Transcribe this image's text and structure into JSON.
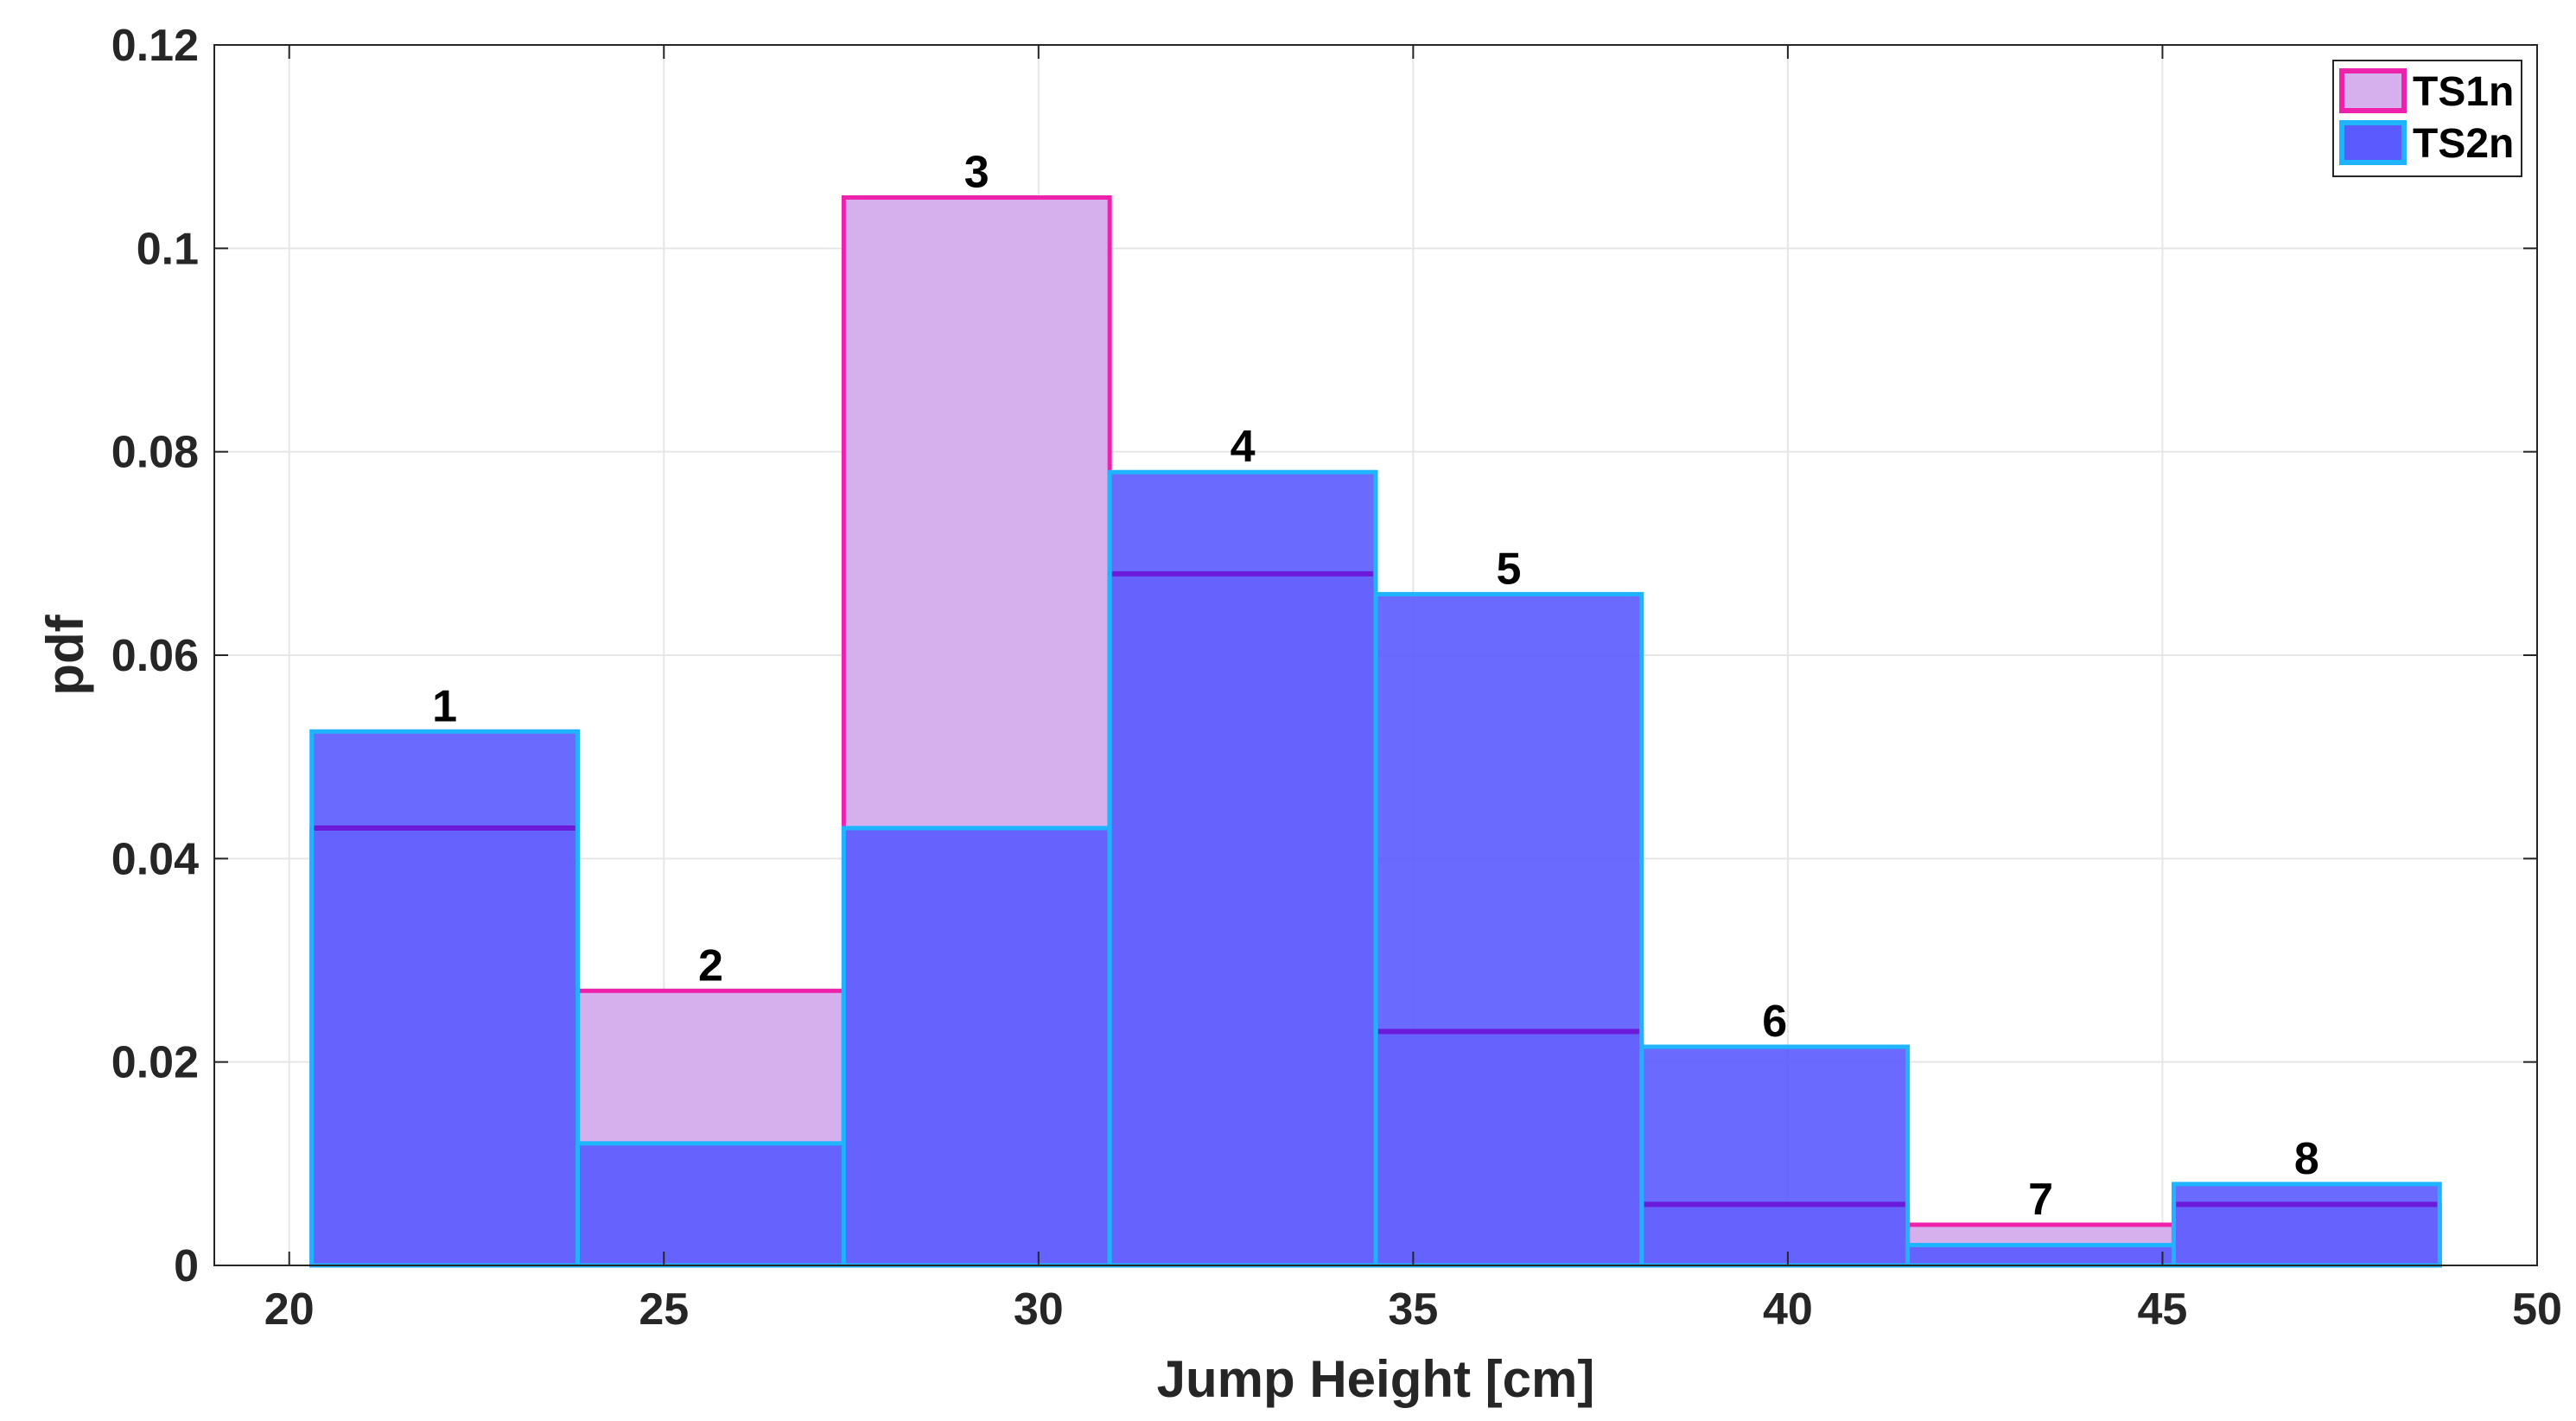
{
  "chart_data": {
    "type": "bar",
    "title": "",
    "xlabel": "Jump Height [cm]",
    "ylabel": "pdf",
    "xlim": [
      19,
      50
    ],
    "ylim": [
      0,
      0.12
    ],
    "grid": true,
    "xticks": [
      20,
      25,
      30,
      35,
      40,
      45,
      50
    ],
    "yticks": [
      0,
      0.02,
      0.04,
      0.06,
      0.08,
      0.1,
      0.12
    ],
    "ytick_labels": [
      "0",
      "0.02",
      "0.04",
      "0.06",
      "0.08",
      "0.1",
      "0.12"
    ],
    "bin_edges": [
      20.3,
      23.85,
      27.4,
      30.95,
      34.5,
      38.05,
      41.6,
      45.15,
      48.7
    ],
    "bin_labels": [
      "1",
      "2",
      "3",
      "4",
      "5",
      "6",
      "7",
      "8"
    ],
    "series": [
      {
        "name": "TS1n",
        "values": [
          0.043,
          0.027,
          0.105,
          0.068,
          0.023,
          0.006,
          0.004,
          0.006
        ],
        "fill": "#d6b0ec",
        "edge": "#ee22aa"
      },
      {
        "name": "TS2n",
        "values": [
          0.0525,
          0.012,
          0.043,
          0.078,
          0.066,
          0.0215,
          0.002,
          0.008
        ],
        "fill": "#5a5aff",
        "edge": "#1eb4ff"
      }
    ],
    "overlap_line_color": "#6a1ad8",
    "legend_position": "top-right"
  }
}
